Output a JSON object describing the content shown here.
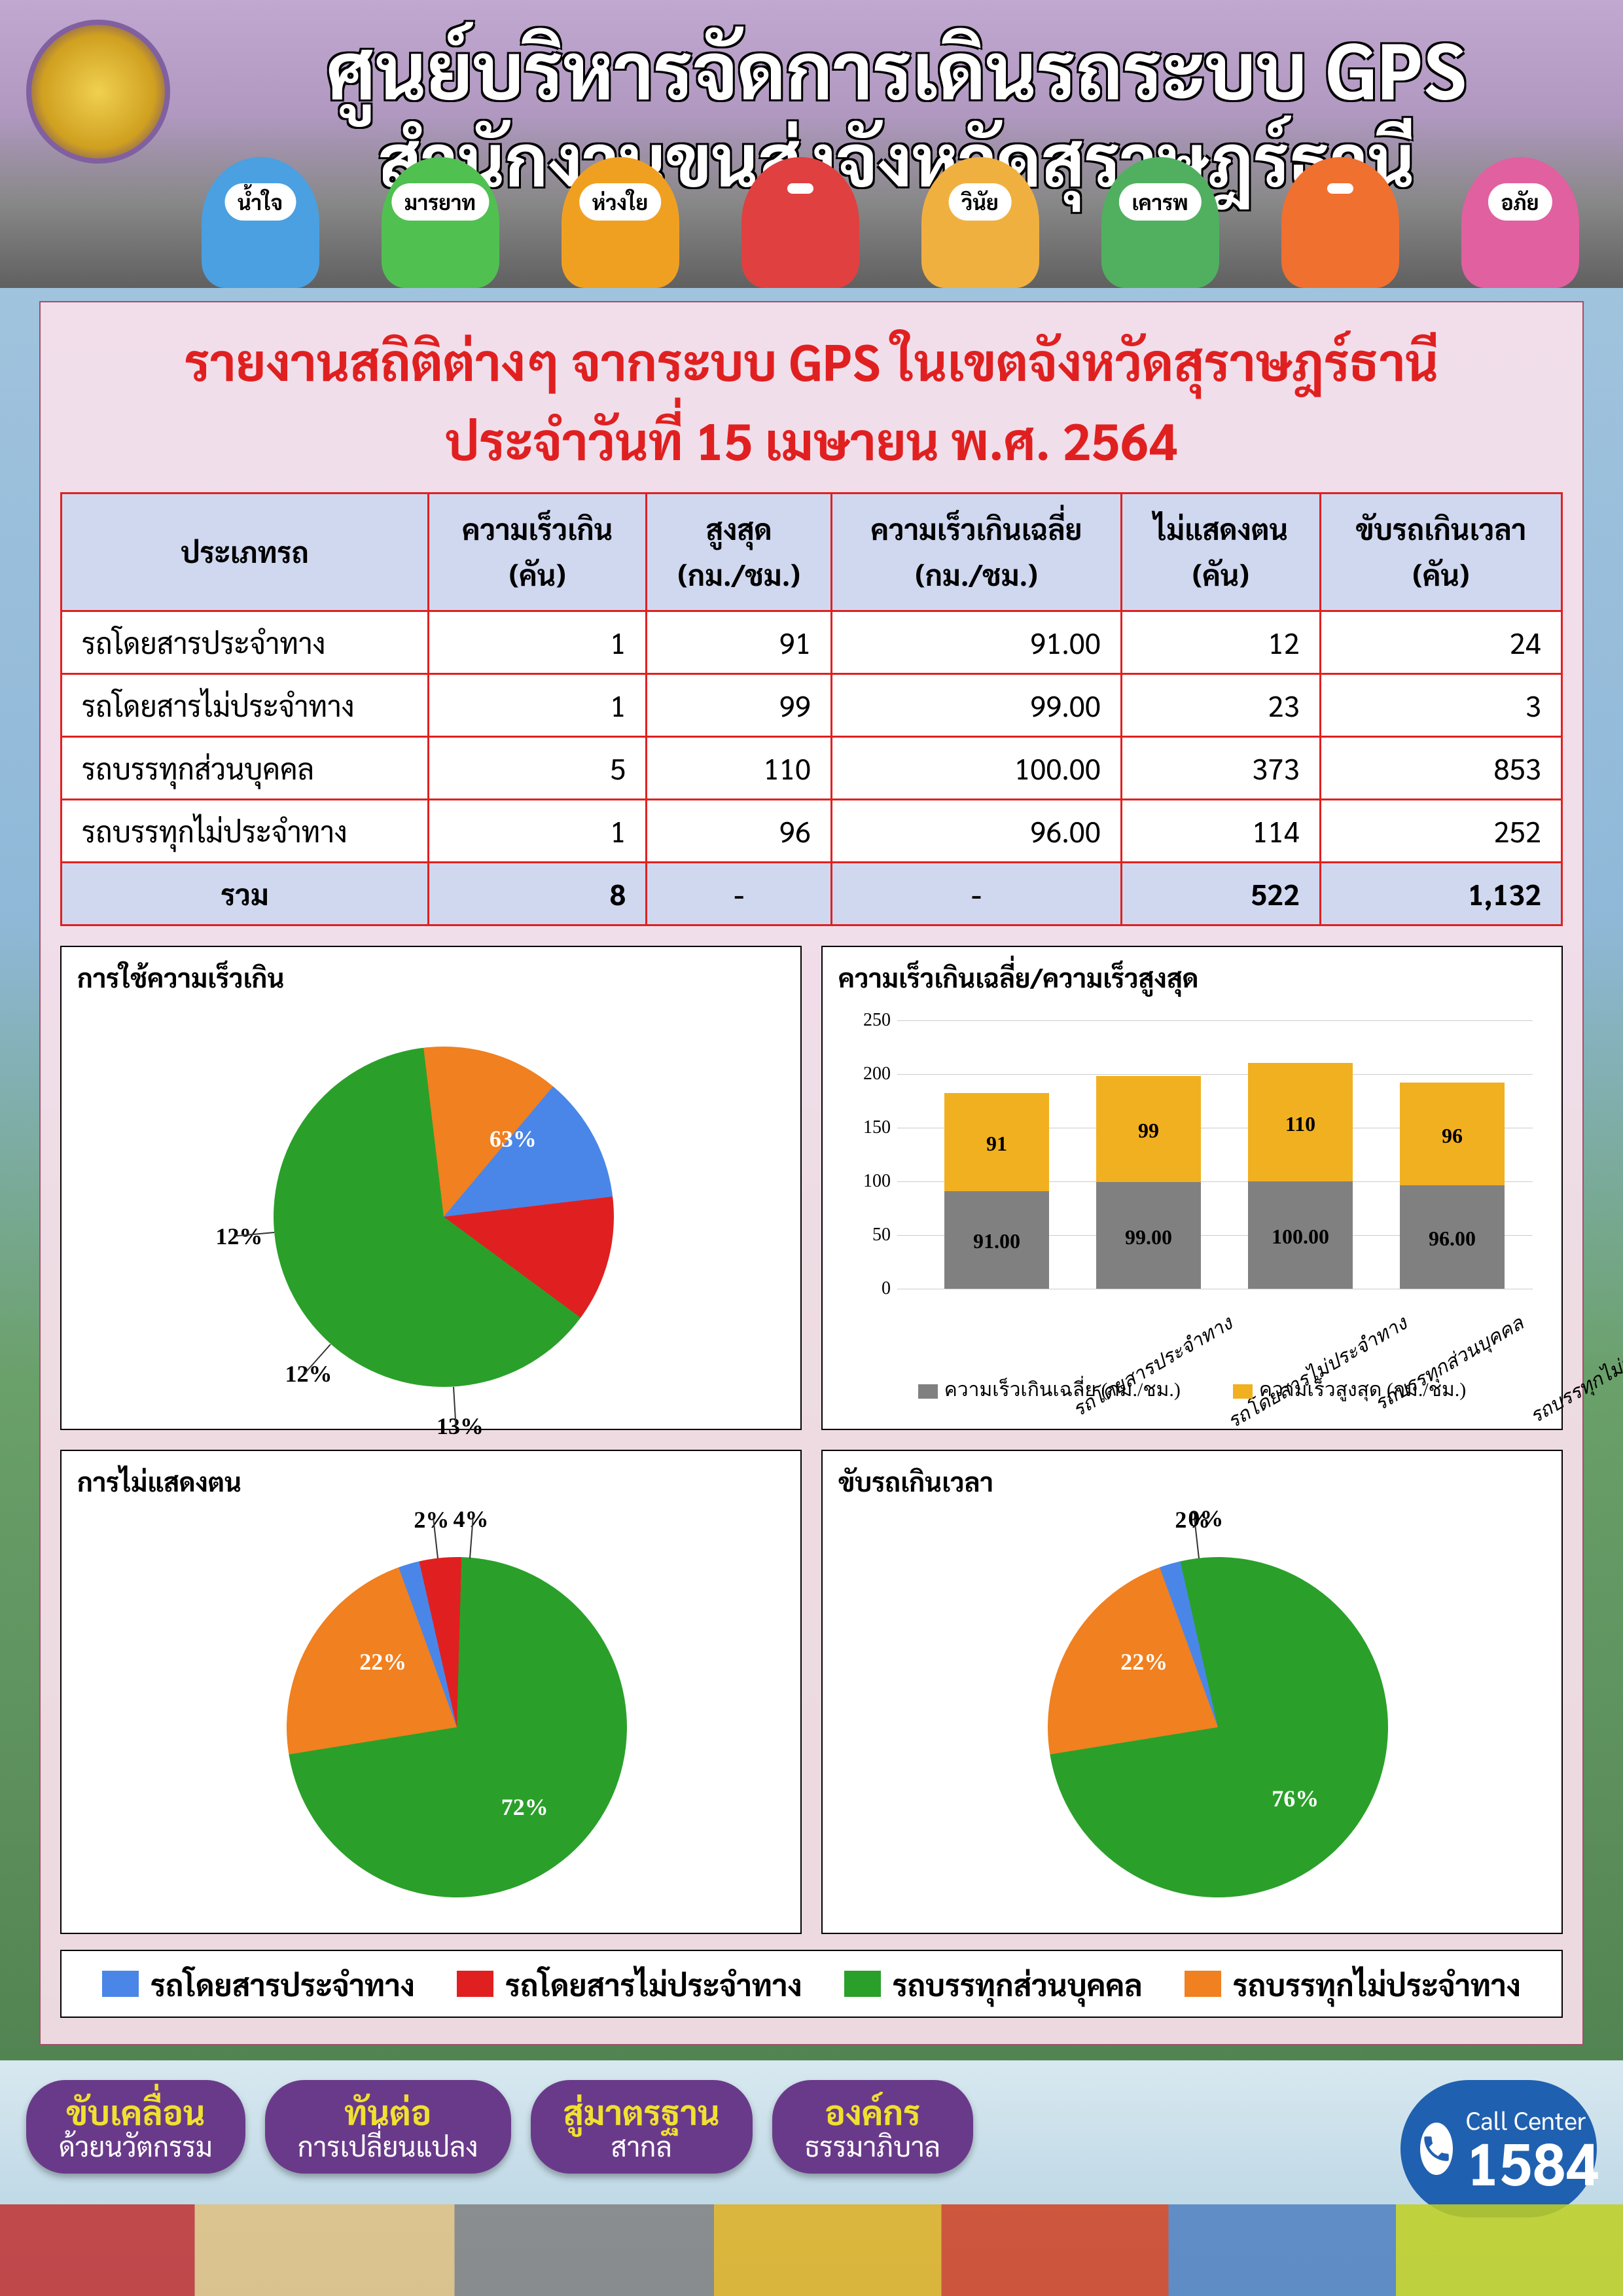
{
  "header": {
    "title1": "ศูนย์บริหารจัดการเดินรถระบบ GPS",
    "title2": "สำนักงานขนส่งจังหวัดสุราษฎร์ธานี",
    "mascots": [
      {
        "label": "น้ำใจ",
        "color": "#4aa0e0"
      },
      {
        "label": "มารยาท",
        "color": "#50c050"
      },
      {
        "label": "ห่วงใย",
        "color": "#f0a020"
      },
      {
        "label": "",
        "color": "#e04040"
      },
      {
        "label": "วินัย",
        "color": "#f0b040"
      },
      {
        "label": "เคารพ",
        "color": "#50b060"
      },
      {
        "label": "",
        "color": "#f07030"
      },
      {
        "label": "อภัย",
        "color": "#e060a0"
      }
    ]
  },
  "report": {
    "title": "รายงานสถิติต่างๆ จากระบบ GPS ในเขตจังหวัดสุราษฎร์ธานี",
    "date": "ประจำวันที่ 15 เมษายน พ.ศ. 2564"
  },
  "table": {
    "columns": [
      "ประเภทรถ",
      "ความเร็วเกิน (คัน)",
      "สูงสุด (กม./ชม.)",
      "ความเร็วเกินเฉลี่ย (กม./ชม.)",
      "ไม่แสดงตน (คัน)",
      "ขับรถเกินเวลา (คัน)"
    ],
    "rows": [
      {
        "cat": "รถโดยสารประจำทาง",
        "over": "1",
        "max": "91",
        "avg": "91.00",
        "noshow": "12",
        "overtime": "24"
      },
      {
        "cat": "รถโดยสารไม่ประจำทาง",
        "over": "1",
        "max": "99",
        "avg": "99.00",
        "noshow": "23",
        "overtime": "3"
      },
      {
        "cat": "รถบรรทุกส่วนบุคคล",
        "over": "5",
        "max": "110",
        "avg": "100.00",
        "noshow": "373",
        "overtime": "853"
      },
      {
        "cat": "รถบรรทุกไม่ประจำทาง",
        "over": "1",
        "max": "96",
        "avg": "96.00",
        "noshow": "114",
        "overtime": "252"
      }
    ],
    "total": {
      "label": "รวม",
      "over": "8",
      "max": "-",
      "avg": "-",
      "noshow": "522",
      "overtime": "1,132"
    }
  },
  "colors": {
    "series": [
      "#4a86e8",
      "#e02020",
      "#2aa02a",
      "#f08020"
    ],
    "bar_avg": "#808080",
    "bar_max": "#f0b020",
    "bg": "#f6dde6",
    "border": "#e02020",
    "header_bg": "#d0d8f0"
  },
  "categories": [
    "รถโดยสารประจำทาง",
    "รถโดยสารไม่ประจำทาง",
    "รถบรรทุกส่วนบุคคล",
    "รถบรรทุกไม่ประจำทาง"
  ],
  "pie1": {
    "title": "การใช้ความเร็วเกิน",
    "slices": [
      {
        "v": 12,
        "label": "12%"
      },
      {
        "v": 12,
        "label": "12%"
      },
      {
        "v": 63,
        "label": "63%"
      },
      {
        "v": 13,
        "label": "13%"
      }
    ]
  },
  "pie2": {
    "title": "การไม่แสดงตน",
    "slices": [
      {
        "v": 2,
        "label": "2%"
      },
      {
        "v": 4,
        "label": "4%"
      },
      {
        "v": 72,
        "label": "72%"
      },
      {
        "v": 22,
        "label": "22%"
      }
    ]
  },
  "pie3": {
    "title": "ขับรถเกินเวลา",
    "slices": [
      {
        "v": 2,
        "label": "2%"
      },
      {
        "v": 0,
        "label": "0%"
      },
      {
        "v": 76,
        "label": "76%"
      },
      {
        "v": 22,
        "label": "22%"
      }
    ]
  },
  "barchart": {
    "title": "ความเร็วเกินเฉลี่ย/ความเร็วสูงสุด",
    "ymax": 250,
    "ytick": 50,
    "avg": [
      91.0,
      99.0,
      100.0,
      96.0
    ],
    "max": [
      91,
      99,
      110,
      96
    ],
    "avg_labels": [
      "91.00",
      "99.00",
      "100.00",
      "96.00"
    ],
    "max_labels": [
      "91",
      "99",
      "110",
      "96"
    ],
    "legend_avg": "ความเร็วเกินเฉลี่ย (กม./ชม.)",
    "legend_max": "ความเร็วสูงสุด (กม./ชม.)"
  },
  "main_legend": [
    "รถโดยสารประจำทาง",
    "รถโดยสารไม่ประจำทาง",
    "รถบรรทุกส่วนบุคคล",
    "รถบรรทุกไม่ประจำทาง"
  ],
  "footer": {
    "pills": [
      {
        "top": "ขับเคลื่อน",
        "bot": "ด้วยนวัตกรรม"
      },
      {
        "top": "ทันต่อ",
        "bot": "การเปลี่ยนแปลง"
      },
      {
        "top": "สู่มาตรฐาน",
        "bot": "สากล"
      },
      {
        "top": "องค์กร",
        "bot": "ธรรมาภิบาล"
      }
    ],
    "call_center": {
      "label": "Call Center",
      "number": "1584"
    }
  }
}
